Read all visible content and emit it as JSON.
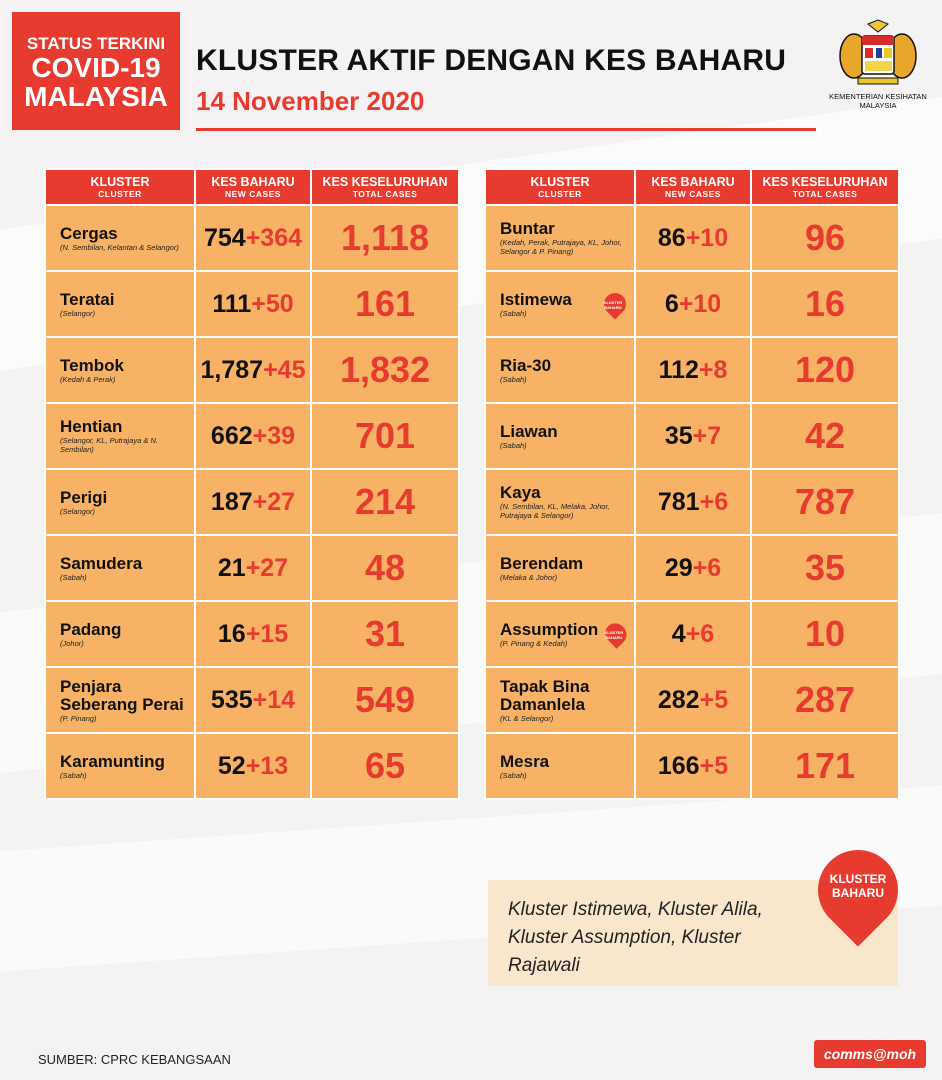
{
  "badge": {
    "line1": "STATUS TERKINI",
    "line2": "COVID-19",
    "line3": "MALAYSIA"
  },
  "header": {
    "title": "KLUSTER AKTIF DENGAN KES BAHARU",
    "date": "14 November 2020"
  },
  "ministry": {
    "line1": "KEMENTERIAN KESIHATAN",
    "line2": "MALAYSIA"
  },
  "columns": {
    "kluster": "KLUSTER",
    "kluster_en": "CLUSTER",
    "new": "KES BAHARU",
    "new_en": "NEW CASES",
    "total": "KES KESELURUHAN",
    "total_en": "TOTAL CASES"
  },
  "left_rows": [
    {
      "name": "Cergas",
      "states": "(N. Sembilan, Kelantan & Selangor)",
      "prev": "754",
      "add": "+364",
      "total": "1,118"
    },
    {
      "name": "Teratai",
      "states": "(Selangor)",
      "prev": "111",
      "add": "+50",
      "total": "161"
    },
    {
      "name": "Tembok",
      "states": "(Kedah & Perak)",
      "prev": "1,787",
      "add": "+45",
      "total": "1,832"
    },
    {
      "name": "Hentian",
      "states": "(Selangor, KL, Putrajaya & N. Sembilan)",
      "prev": "662",
      "add": "+39",
      "total": "701"
    },
    {
      "name": "Perigi",
      "states": "(Selangor)",
      "prev": "187",
      "add": "+27",
      "total": "214"
    },
    {
      "name": "Samudera",
      "states": "(Sabah)",
      "prev": "21",
      "add": "+27",
      "total": "48"
    },
    {
      "name": "Padang",
      "states": "(Johor)",
      "prev": "16",
      "add": "+15",
      "total": "31"
    },
    {
      "name": "Penjara Seberang Perai",
      "states": "(P. Pinang)",
      "prev": "535",
      "add": "+14",
      "total": "549"
    },
    {
      "name": "Karamunting",
      "states": "(Sabah)",
      "prev": "52",
      "add": "+13",
      "total": "65"
    }
  ],
  "right_rows": [
    {
      "name": "Buntar",
      "states": "(Kedah, Perak, Putrajaya, KL, Johor, Selangor & P. Pinang)",
      "prev": "86",
      "add": "+10",
      "total": "96",
      "is_new": false
    },
    {
      "name": "Istimewa",
      "states": "(Sabah)",
      "prev": "6",
      "add": "+10",
      "total": "16",
      "is_new": true
    },
    {
      "name": "Ria-30",
      "states": "(Sabah)",
      "prev": "112",
      "add": "+8",
      "total": "120",
      "is_new": false
    },
    {
      "name": "Liawan",
      "states": "(Sabah)",
      "prev": "35",
      "add": "+7",
      "total": "42",
      "is_new": false
    },
    {
      "name": "Kaya",
      "states": "(N. Sembilan, KL, Melaka, Johor, Putrajaya & Selangor)",
      "prev": "781",
      "add": "+6",
      "total": "787",
      "is_new": false
    },
    {
      "name": "Berendam",
      "states": "(Melaka & Johor)",
      "prev": "29",
      "add": "+6",
      "total": "35",
      "is_new": false
    },
    {
      "name": "Assumption",
      "states": "(P. Pinang & Kedah)",
      "prev": "4",
      "add": "+6",
      "total": "10",
      "is_new": true
    },
    {
      "name": "Tapak Bina Damanlela",
      "states": "(KL & Selangor)",
      "prev": "282",
      "add": "+5",
      "total": "287",
      "is_new": false
    },
    {
      "name": "Mesra",
      "states": "(Sabah)",
      "prev": "166",
      "add": "+5",
      "total": "171",
      "is_new": false
    }
  ],
  "pin_label": "KLUSTER BAHARU",
  "note": {
    "text": "Kluster Istimewa, Kluster Alila, Kluster Assumption, Kluster Rajawali",
    "pin": "KLUSTER BAHARU"
  },
  "footer": {
    "source": "SUMBER: CPRC KEBANGSAAN",
    "brand": "comms@moh"
  },
  "colors": {
    "accent": "#e63b2e",
    "cell": "#f7b265",
    "note_bg": "#f8e7cc"
  }
}
